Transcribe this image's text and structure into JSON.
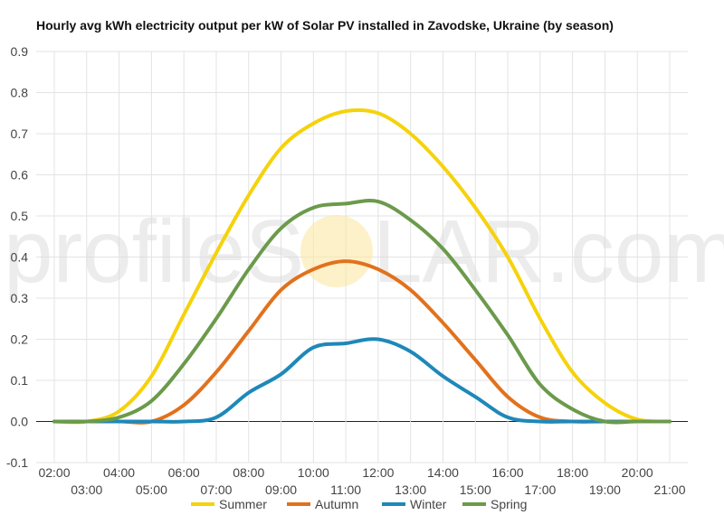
{
  "chart_data": {
    "type": "line",
    "title": "Hourly avg kWh electricity output per kW of Solar PV installed in Zavodske, Ukraine (by season)",
    "xlabel": "",
    "ylabel": "",
    "ylim": [
      -0.1,
      0.9
    ],
    "y_ticks": [
      "-0.1",
      "0.0",
      "0.1",
      "0.2",
      "0.3",
      "0.4",
      "0.5",
      "0.6",
      "0.7",
      "0.8",
      "0.9"
    ],
    "x_ticks_upper": [
      "02:00",
      "04:00",
      "06:00",
      "08:00",
      "10:00",
      "12:00",
      "14:00",
      "16:00",
      "18:00",
      "20:00"
    ],
    "x_ticks_lower": [
      "03:00",
      "05:00",
      "07:00",
      "09:00",
      "11:00",
      "13:00",
      "15:00",
      "17:00",
      "19:00",
      "21:00"
    ],
    "x": [
      "02:00",
      "03:00",
      "04:00",
      "05:00",
      "06:00",
      "07:00",
      "08:00",
      "09:00",
      "10:00",
      "11:00",
      "12:00",
      "13:00",
      "14:00",
      "15:00",
      "16:00",
      "17:00",
      "18:00",
      "19:00",
      "20:00",
      "21:00"
    ],
    "grid": true,
    "legend_position": "bottom",
    "series": [
      {
        "name": "Summer",
        "color": "#f5d20b",
        "values": [
          0.0,
          0.0,
          0.025,
          0.11,
          0.26,
          0.41,
          0.55,
          0.665,
          0.725,
          0.755,
          0.75,
          0.7,
          0.62,
          0.52,
          0.4,
          0.25,
          0.12,
          0.045,
          0.005,
          0.0
        ]
      },
      {
        "name": "Autumn",
        "color": "#e2711d",
        "values": [
          0.0,
          0.0,
          0.0,
          0.0,
          0.04,
          0.12,
          0.22,
          0.32,
          0.37,
          0.39,
          0.37,
          0.32,
          0.24,
          0.15,
          0.06,
          0.01,
          0.0,
          0.0,
          0.0,
          0.0
        ]
      },
      {
        "name": "Winter",
        "color": "#1e88b9",
        "values": [
          0.0,
          0.0,
          0.0,
          0.0,
          0.0,
          0.01,
          0.07,
          0.115,
          0.18,
          0.19,
          0.2,
          0.17,
          0.11,
          0.06,
          0.01,
          0.0,
          0.0,
          0.0,
          0.0,
          0.0
        ]
      },
      {
        "name": "Spring",
        "color": "#6b9a4b",
        "values": [
          0.0,
          0.0,
          0.01,
          0.05,
          0.14,
          0.25,
          0.37,
          0.47,
          0.52,
          0.53,
          0.535,
          0.49,
          0.42,
          0.32,
          0.21,
          0.09,
          0.03,
          0.0,
          0.0,
          0.0
        ]
      }
    ]
  },
  "watermark": {
    "text_left": "profileS",
    "text_right": "LAR.com",
    "sun_color": "#fbe7a6"
  }
}
